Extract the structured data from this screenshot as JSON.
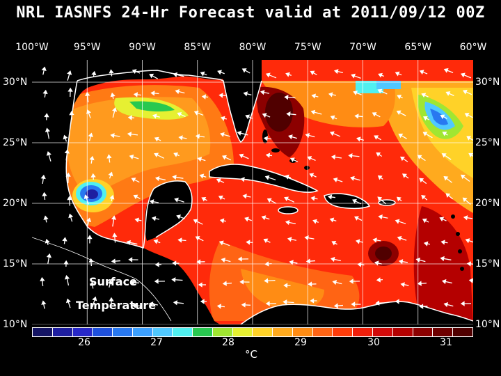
{
  "title": "NRL IASNFS  24-Hr Forecast valid at 2011/09/12 00Z",
  "lon_labels": [
    "100°W",
    "95°W",
    "90°W",
    "85°W",
    "80°W",
    "75°W",
    "70°W",
    "65°W",
    "60°W"
  ],
  "lat_labels": [
    "30°N",
    "25°N",
    "20°N",
    "15°N",
    "10°N"
  ],
  "map_label_line1": "Surface",
  "map_label_line2": "Temperature",
  "colorbar": {
    "ticks": [
      "26",
      "27",
      "28",
      "29",
      "30",
      "31"
    ],
    "unit": "°C",
    "colors": [
      "#141464",
      "#1e1ea0",
      "#2828c8",
      "#1e50dc",
      "#2878f0",
      "#3ca0ff",
      "#50c8ff",
      "#50f0f0",
      "#28c850",
      "#a0e632",
      "#e6f032",
      "#ffd228",
      "#ffaa1e",
      "#ff8c14",
      "#ff6414",
      "#ff3c0a",
      "#f01e0a",
      "#d20a0a",
      "#b40000",
      "#8c0000",
      "#6e0000",
      "#500000"
    ]
  }
}
